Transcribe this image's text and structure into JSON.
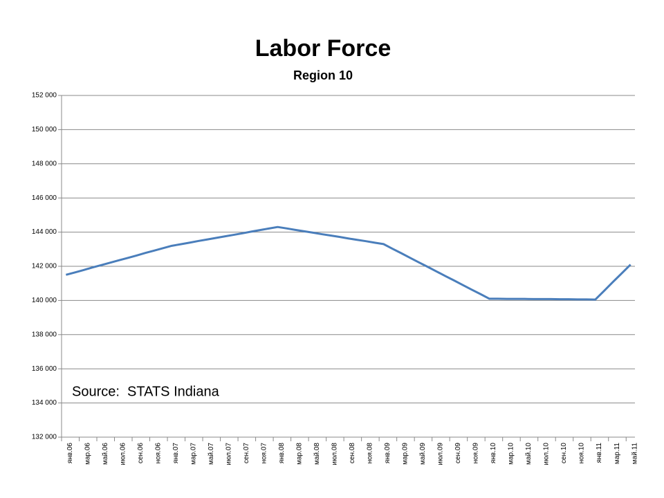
{
  "chart_data": {
    "type": "line",
    "title": "Labor Force",
    "subtitle": "Region 10",
    "annotation": "Source:  STATS Indiana",
    "categories": [
      "янв.06",
      null,
      "мар.06",
      null,
      "май.06",
      null,
      "июл.06",
      null,
      "сен.06",
      null,
      "ноя.06",
      null,
      "янв.07",
      null,
      "мар.07",
      null,
      "май.07",
      null,
      "июл.07",
      null,
      "сен.07",
      null,
      "ноя.07",
      null,
      "янв.08",
      null,
      "мар.08",
      null,
      "май.08",
      null,
      "июл.08",
      null,
      "сен.08",
      null,
      "ноя.08",
      null,
      "янв.09",
      null,
      "мар.09",
      null,
      "май.09",
      null,
      "июл.09",
      null,
      "сен.09",
      null,
      "ноя.09",
      null,
      "янв.10",
      null,
      "мар.10",
      null,
      "май.10",
      null,
      "июл.10",
      null,
      "сен.10",
      null,
      "ноя.10",
      null,
      "янв.11",
      null,
      "мар.11",
      null,
      "май.11"
    ],
    "values": [
      141500,
      141640,
      141780,
      141930,
      142070,
      142210,
      142350,
      142490,
      142630,
      142780,
      142920,
      143060,
      143200,
      143290,
      143380,
      143480,
      143570,
      143660,
      143750,
      143840,
      143930,
      144030,
      144120,
      144210,
      144300,
      144220,
      144130,
      144050,
      143970,
      143880,
      143800,
      143720,
      143630,
      143550,
      143470,
      143380,
      143300,
      143030,
      142770,
      142500,
      142230,
      141970,
      141700,
      141430,
      141170,
      140900,
      140630,
      140370,
      140100,
      140100,
      140090,
      140090,
      140090,
      140080,
      140080,
      140080,
      140070,
      140070,
      140060,
      140060,
      140050,
      140560,
      141080,
      141590,
      142100
    ],
    "color": "#4a7ebb",
    "ylim": [
      132000,
      152000
    ],
    "yticks": [
      {
        "value": 132000,
        "label": "132 000"
      },
      {
        "value": 134000,
        "label": "134 000"
      },
      {
        "value": 136000,
        "label": "136 000"
      },
      {
        "value": 138000,
        "label": "138 000"
      },
      {
        "value": 140000,
        "label": "140 000"
      },
      {
        "value": 142000,
        "label": "142 000"
      },
      {
        "value": 144000,
        "label": "144 000"
      },
      {
        "value": 146000,
        "label": "146 000"
      },
      {
        "value": 148000,
        "label": "148 000"
      },
      {
        "value": 150000,
        "label": "150 000"
      },
      {
        "value": 152000,
        "label": "152 000"
      }
    ],
    "grid": true
  }
}
